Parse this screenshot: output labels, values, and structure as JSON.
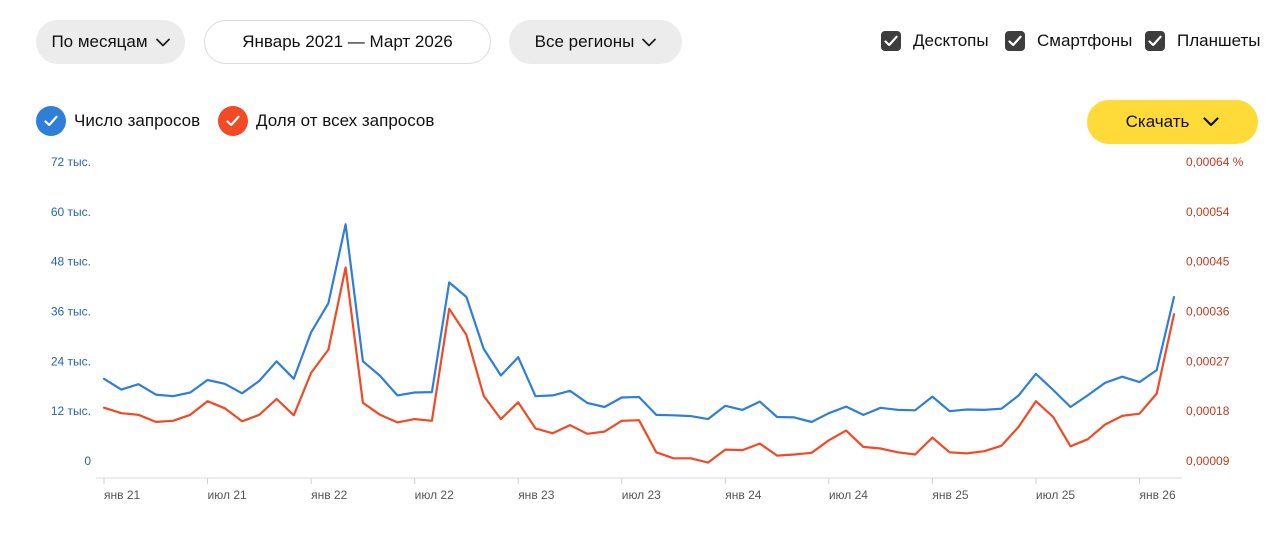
{
  "controls": {
    "period_label": "По месяцам",
    "date_range": "Январь 2021 — Март 2026",
    "region_label": "Все регионы"
  },
  "devices": [
    {
      "label": "Десктопы",
      "checked": true
    },
    {
      "label": "Смартфоны",
      "checked": true
    },
    {
      "label": "Планшеты",
      "checked": true
    }
  ],
  "legend": [
    {
      "label": "Число запросов",
      "color": "#2f7ed8"
    },
    {
      "label": "Доля от всех запросов",
      "color": "#f04a26"
    }
  ],
  "download_label": "Скачать",
  "icons": {
    "chevron": "chevron-down-icon",
    "check": "check-icon"
  },
  "chart_data": {
    "type": "line",
    "x_tick_labels": [
      "янв 21",
      "июл 21",
      "янв 22",
      "июл 22",
      "янв 23",
      "июл 23",
      "янв 24",
      "июл 24",
      "янв 25",
      "июл 25",
      "янв 26"
    ],
    "y_left_labels": [
      "0",
      "12 тыс.",
      "24 тыс.",
      "36 тыс.",
      "48 тыс.",
      "60 тыс.",
      "72 тыс."
    ],
    "y_left_range": [
      0,
      72000
    ],
    "y_right_labels": [
      "0,00009",
      "0,00018",
      "0,00027",
      "0,00036",
      "0,00045",
      "0,00054",
      "0,00064 %"
    ],
    "y_right_range": [
      9e-05,
      0.00064
    ],
    "grid": false,
    "series": [
      {
        "name": "Число запросов",
        "color": "#2f7ed8",
        "axis": "left",
        "values": [
          19800,
          17200,
          18500,
          16000,
          15600,
          16500,
          19500,
          18600,
          16300,
          19300,
          24000,
          19800,
          31000,
          38000,
          57000,
          24000,
          20500,
          15800,
          16500,
          16600,
          43000,
          39500,
          27000,
          20600,
          25000,
          15600,
          15800,
          16900,
          14000,
          13000,
          15300,
          15400,
          11100,
          11000,
          10800,
          10100,
          13300,
          12300,
          14300,
          10600,
          10500,
          9400,
          11500,
          13100,
          11100,
          12800,
          12300,
          12200,
          15500,
          12000,
          12400,
          12300,
          12600,
          15800,
          21000,
          17100,
          13000,
          15800,
          18800,
          20300,
          19000,
          21900,
          39500
        ]
      },
      {
        "name": "Доля от всех запросов",
        "color": "#f04a26",
        "axis": "right",
        "values": [
          0.000188,
          0.000178,
          0.000175,
          0.000162,
          0.000164,
          0.000175,
          0.0002,
          0.000187,
          0.000163,
          0.000175,
          0.000204,
          0.000174,
          0.000252,
          0.000295,
          0.000446,
          0.000197,
          0.000175,
          0.000161,
          0.000167,
          0.000164,
          0.00037,
          0.000322,
          0.00021,
          0.000167,
          0.000198,
          0.00015,
          0.000141,
          0.000156,
          0.00014,
          0.000144,
          0.000164,
          0.000165,
          0.000106,
          9.5e-05,
          9.5e-05,
          8.7e-05,
          0.000111,
          0.00011,
          0.000122,
          0.0001,
          0.000102,
          0.000105,
          0.000128,
          0.000146,
          0.000116,
          0.000113,
          0.000106,
          0.000102,
          0.000133,
          0.000106,
          0.000104,
          0.000108,
          0.000118,
          0.000153,
          0.0002,
          0.000171,
          0.000117,
          0.00013,
          0.000157,
          0.000173,
          0.000177,
          0.000214,
          0.00036
        ]
      }
    ]
  }
}
